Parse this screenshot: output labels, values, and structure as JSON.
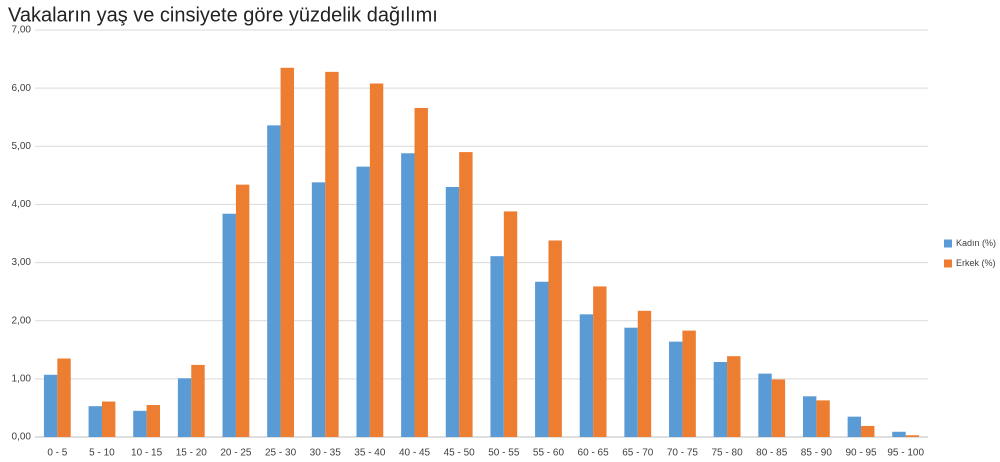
{
  "chart_data": {
    "type": "bar",
    "title": "Vakaların yaş ve cinsiyete göre yüzdelik dağılımı",
    "categories": [
      "0 - 5",
      "5 - 10",
      "10 - 15",
      "15 - 20",
      "20 - 25",
      "25 - 30",
      "30 - 35",
      "35 - 40",
      "40 - 45",
      "45 - 50",
      "50 - 55",
      "55 - 60",
      "60 - 65",
      "65 - 70",
      "70 - 75",
      "75 - 80",
      "80 - 85",
      "85 - 90",
      "90 - 95",
      "95 - 100"
    ],
    "series": [
      {
        "name": "Kadın (%)",
        "color": "#5b9bd5",
        "values": [
          1.07,
          0.53,
          0.45,
          1.01,
          3.84,
          5.36,
          4.38,
          4.65,
          4.88,
          4.3,
          3.11,
          2.67,
          2.11,
          1.88,
          1.64,
          1.29,
          1.09,
          0.7,
          0.35,
          0.09
        ]
      },
      {
        "name": "Erkek (%)",
        "color": "#ed7d31",
        "values": [
          1.35,
          0.61,
          0.55,
          1.24,
          4.34,
          6.35,
          6.28,
          6.08,
          5.66,
          4.9,
          3.88,
          3.38,
          2.59,
          2.17,
          1.83,
          1.39,
          0.99,
          0.63,
          0.19,
          0.03
        ]
      }
    ],
    "ylim": [
      0,
      7
    ],
    "yticks": [
      {
        "value": 0,
        "label": "0,00"
      },
      {
        "value": 1,
        "label": "1,00"
      },
      {
        "value": 2,
        "label": "2,00"
      },
      {
        "value": 3,
        "label": "3,00"
      },
      {
        "value": 4,
        "label": "4,00"
      },
      {
        "value": 5,
        "label": "5,00"
      },
      {
        "value": 6,
        "label": "6,00"
      },
      {
        "value": 7,
        "label": "7,00"
      }
    ],
    "grid": true,
    "legend": "right"
  }
}
